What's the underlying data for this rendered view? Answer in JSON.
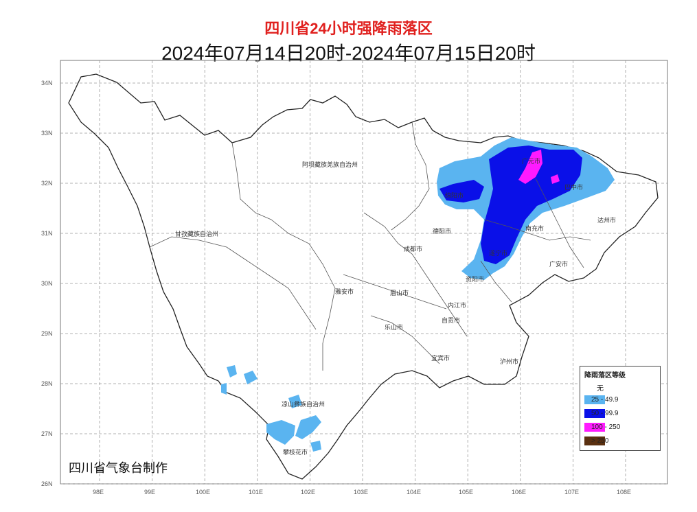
{
  "title": "四川省24小时强降雨落区",
  "subtitle": "2024年07月14日20时-2024年07月15日20时",
  "credit": "四川省气象台制作",
  "axes": {
    "lat_labels": [
      "34N",
      "33N",
      "32N",
      "31N",
      "30N",
      "29N",
      "28N",
      "27N",
      "26N"
    ],
    "lon_labels": [
      "98E",
      "99E",
      "100E",
      "101E",
      "102E",
      "103E",
      "104E",
      "105E",
      "106E",
      "107E",
      "108E"
    ]
  },
  "places": [
    {
      "name": "阿坝藏族羌族自治州"
    },
    {
      "name": "甘孜藏族自治州"
    },
    {
      "name": "凉山彝族自治州"
    },
    {
      "name": "攀枝花市"
    },
    {
      "name": "雅安市"
    },
    {
      "name": "眉山市"
    },
    {
      "name": "乐山市"
    },
    {
      "name": "成都市"
    },
    {
      "name": "德阳市"
    },
    {
      "name": "绵阳市"
    },
    {
      "name": "广元市"
    },
    {
      "name": "巴中市"
    },
    {
      "name": "南充市"
    },
    {
      "name": "达州市"
    },
    {
      "name": "遂宁市"
    },
    {
      "name": "广安市"
    },
    {
      "name": "资阳市"
    },
    {
      "name": "内江市"
    },
    {
      "name": "自贡市"
    },
    {
      "name": "宜宾市"
    },
    {
      "name": "泸州市"
    }
  ],
  "legend": {
    "title": "降雨落区等级",
    "items": [
      {
        "label": "无",
        "color": "#ffffff"
      },
      {
        "label": "25 - 49.9",
        "color": "#5ab4f0"
      },
      {
        "label": "50 - 99.9",
        "color": "#0a10e8"
      },
      {
        "label": "100 - 250",
        "color": "#ff1aff"
      },
      {
        "label": "> 250",
        "color": "#5a3010"
      }
    ]
  },
  "colors": {
    "title": "#e0201e",
    "rain_25_49": "#5ab4f0",
    "rain_50_99": "#0a10e8",
    "rain_100_250": "#ff1aff",
    "rain_250": "#5a3010"
  }
}
